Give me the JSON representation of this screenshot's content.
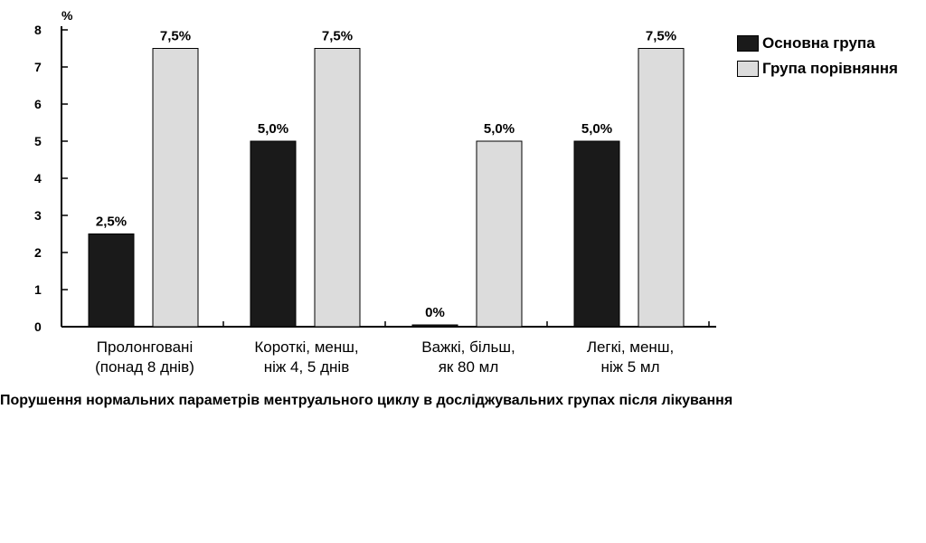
{
  "chart_data": {
    "type": "bar",
    "categories": [
      [
        "Пролонговані",
        "(понад 8 днів)"
      ],
      [
        "Короткі, менш,",
        "ніж 4, 5 днів"
      ],
      [
        "Важкі, більш,",
        "як 80 мл"
      ],
      [
        "Легкі, менш,",
        "ніж 5 мл"
      ]
    ],
    "series": [
      {
        "name": "Основна група",
        "color": "#1a1a1a",
        "values": [
          2.5,
          5.0,
          0,
          5.0
        ],
        "labels": [
          "2,5%",
          "5,0%",
          "0%",
          "5,0%"
        ]
      },
      {
        "name": "Група порівняння",
        "color": "#dcdcdc",
        "values": [
          7.5,
          7.5,
          5.0,
          7.5
        ],
        "labels": [
          "7,5%",
          "7,5%",
          "5,0%",
          "7,5%"
        ]
      }
    ],
    "yunit": "%",
    "ylim": [
      0,
      8
    ],
    "yticks": [
      0,
      1,
      2,
      3,
      4,
      5,
      6,
      7,
      8
    ],
    "grid": false,
    "legend_position": "top-right",
    "title": "Порушення нормальних параметрів ментруального циклу в досліджувальних групах після лікування"
  }
}
